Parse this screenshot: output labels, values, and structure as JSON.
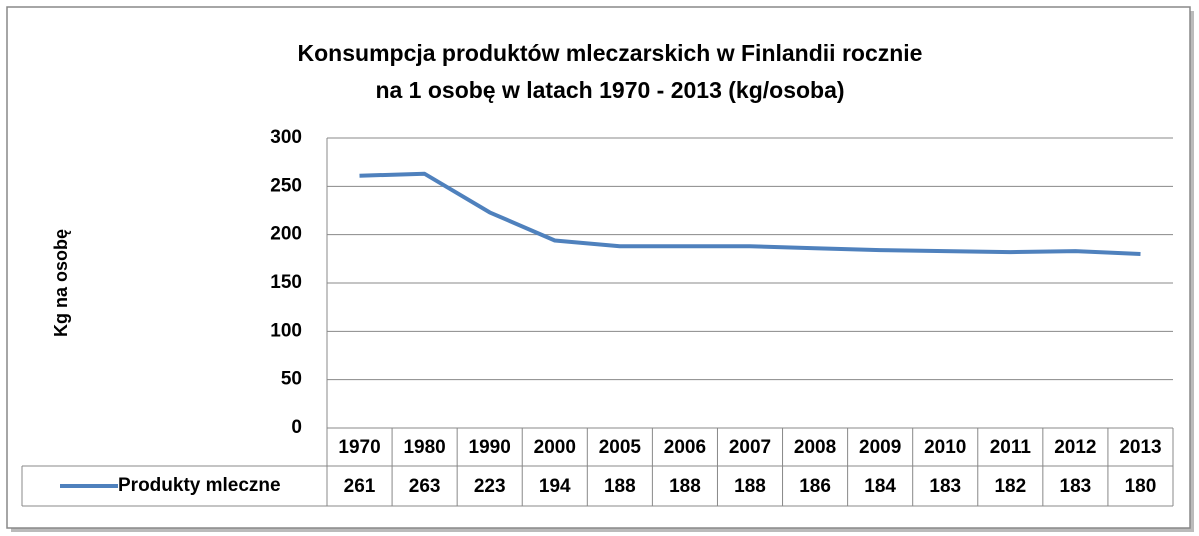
{
  "chart_data": {
    "type": "line",
    "title": [
      "Konsumpcja produktów mleczarskich w Finlandii rocznie",
      "na 1 osobę w latach 1970 - 2013 (kg/osoba)"
    ],
    "y_label": "Kg na osobę",
    "categories": [
      "1970",
      "1980",
      "1990",
      "2000",
      "2005",
      "2006",
      "2007",
      "2008",
      "2009",
      "2010",
      "2011",
      "2012",
      "2013"
    ],
    "series": [
      {
        "name": "Produkty mleczne",
        "color": "#4f81bd",
        "values": [
          261,
          263,
          223,
          194,
          188,
          188,
          188,
          186,
          184,
          183,
          182,
          183,
          180
        ]
      }
    ],
    "ylim": [
      0,
      300
    ],
    "yticks": [
      0,
      50,
      100,
      150,
      200,
      250,
      300
    ],
    "grid": true,
    "data_table": true
  }
}
